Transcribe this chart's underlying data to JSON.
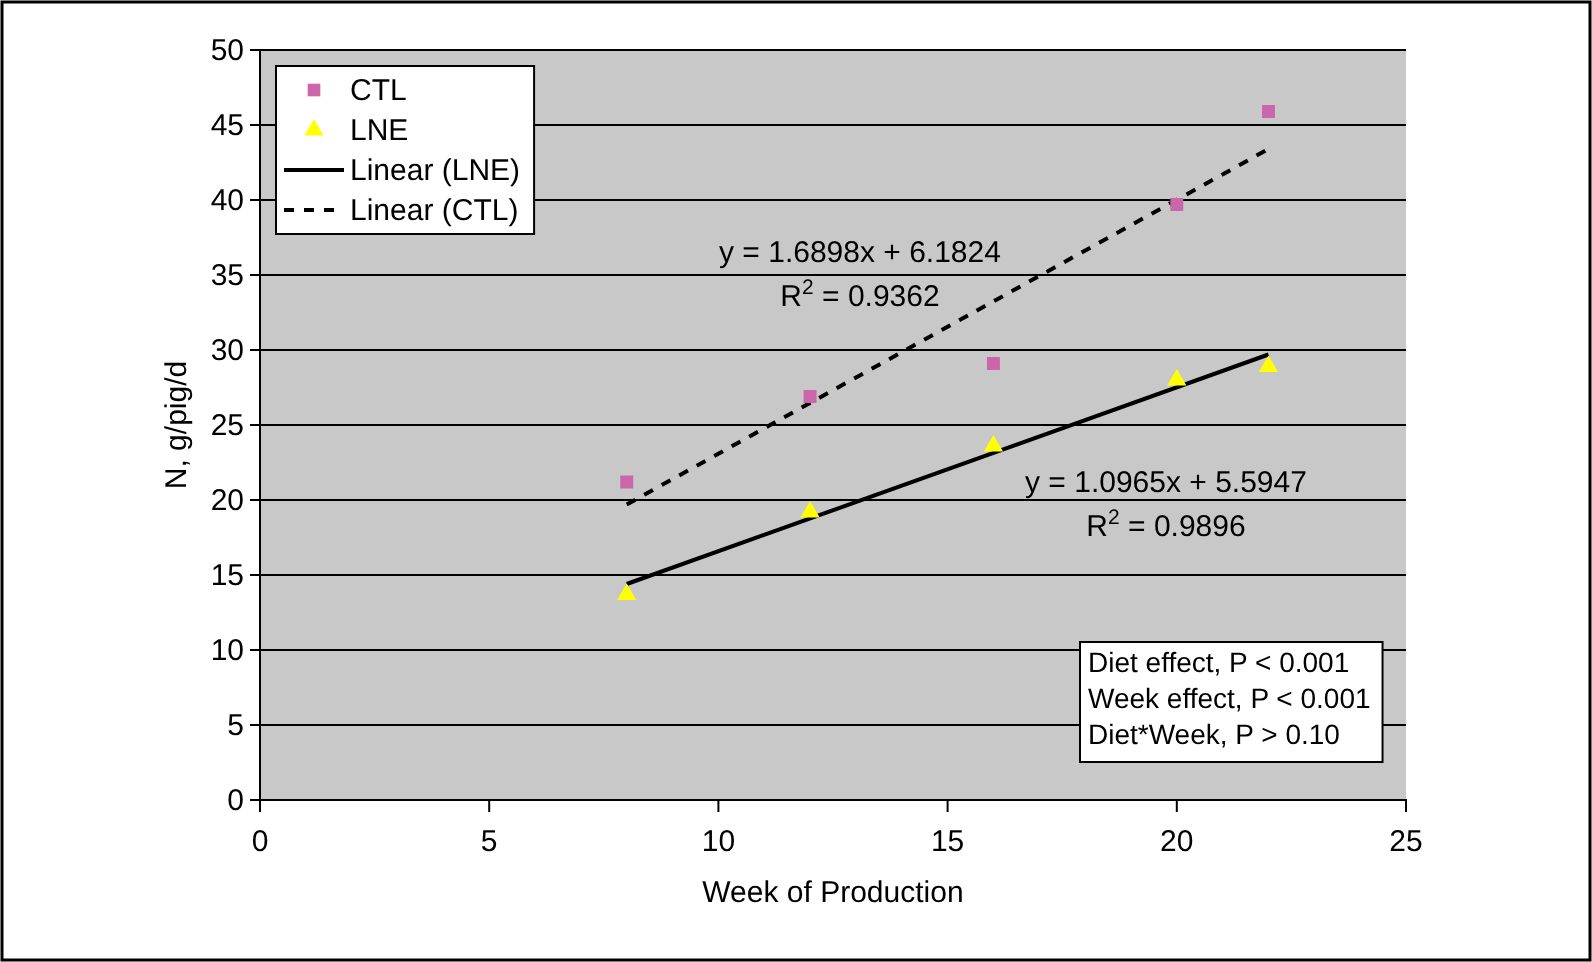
{
  "chart_data": {
    "type": "scatter",
    "xlabel": "Week of Production",
    "ylabel": "N, g/pig/d",
    "xlim": [
      0,
      25
    ],
    "xticks": [
      0,
      5,
      10,
      15,
      20,
      25
    ],
    "ylim": [
      0,
      50
    ],
    "yticks": [
      0,
      5,
      10,
      15,
      20,
      25,
      30,
      35,
      40,
      45,
      50
    ],
    "grid": "y",
    "legend": "top left",
    "series": [
      {
        "name": "CTL",
        "type": "scatter",
        "marker": "square",
        "color": "#cc66aa",
        "x": [
          8,
          12,
          16,
          20,
          22
        ],
        "values": [
          21.2,
          26.9,
          29.1,
          39.7,
          45.9
        ]
      },
      {
        "name": "LNE",
        "type": "scatter",
        "marker": "triangle",
        "color": "#ffff00",
        "x": [
          8,
          12,
          16,
          20,
          22
        ],
        "values": [
          13.7,
          19.2,
          23.6,
          28.0,
          28.9
        ]
      },
      {
        "name": "Linear (LNE)",
        "type": "line",
        "line_style": "solid",
        "color": "#000000",
        "x": [
          8,
          22
        ],
        "values": [
          14.4,
          29.7
        ]
      },
      {
        "name": "Linear (CTL)",
        "type": "line",
        "line_style": "dashed",
        "color": "#000000",
        "x": [
          8,
          22
        ],
        "values": [
          19.7,
          43.4
        ]
      }
    ],
    "annotations": [
      "y = 1.6898x + 6.1824",
      "R$^{2}$ = 0.9362",
      "y = 1.0965x + 5.5947",
      "R$^{2}$ = 0.9896",
      "Diet effect, P < 0.001",
      "Week effect, P < 0.001",
      "Diet*Week, P > 0.10"
    ]
  }
}
